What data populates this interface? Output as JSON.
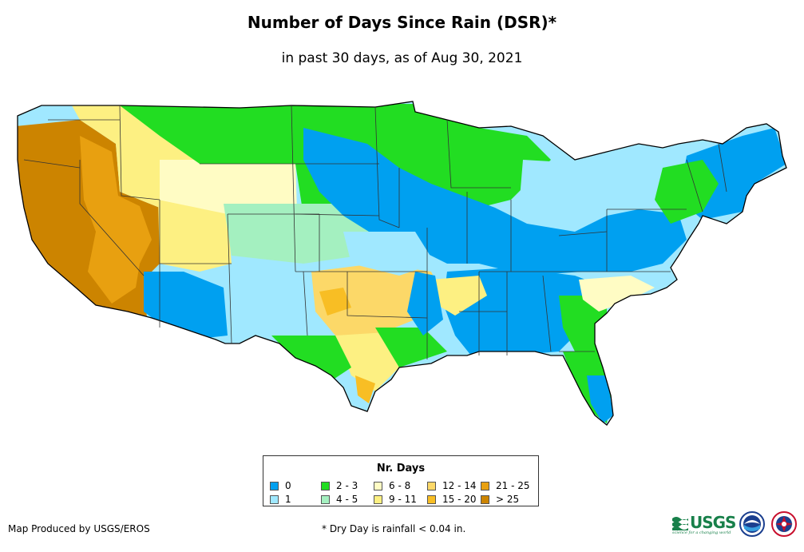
{
  "title": "Number of Days Since Rain (DSR)*",
  "subtitle": "in past 30 days, as of Aug 30, 2021",
  "legend": {
    "title": "Nr. Days",
    "items": [
      {
        "label": "0",
        "color": "#00a0f0"
      },
      {
        "label": "1",
        "color": "#a0e8ff"
      },
      {
        "label": "2 - 3",
        "color": "#22dd22"
      },
      {
        "label": "4 - 5",
        "color": "#a4f0c0"
      },
      {
        "label": "6 - 8",
        "color": "#fffcc4"
      },
      {
        "label": "9 - 11",
        "color": "#fdf082"
      },
      {
        "label": "12 - 14",
        "color": "#fcd868"
      },
      {
        "label": "15 - 20",
        "color": "#f8be24"
      },
      {
        "label": "21 - 25",
        "color": "#e8a010"
      },
      {
        "label": "> 25",
        "color": "#cc8400"
      }
    ]
  },
  "footer": {
    "producer": "Map Produced by USGS/EROS",
    "note": "* Dry Day is rainfall < 0.04 in."
  },
  "logos": {
    "usgs_text": "USGS",
    "usgs_tagline": "science for a changing world",
    "noaa_icon": "noaa-seal-icon",
    "nws_icon": "nws-seal-icon"
  }
}
